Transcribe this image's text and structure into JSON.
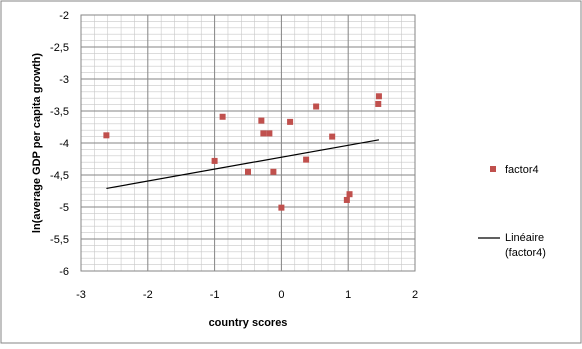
{
  "chart_data": {
    "type": "scatter",
    "title": "",
    "xlabel": "country scores",
    "ylabel": "ln(average GDP per capita growth)",
    "xlim": [
      -3,
      2
    ],
    "ylim": [
      -6,
      -2
    ],
    "xticks": [
      "-3",
      "-2",
      "-1",
      "0",
      "1",
      "2"
    ],
    "yticks": [
      "-2",
      "-2,5",
      "-3",
      "-3,5",
      "-4",
      "-4,5",
      "-5",
      "-5,5",
      "-6"
    ],
    "grid": true,
    "legend_position": "right",
    "series": [
      {
        "name": "factor4",
        "marker": "square",
        "color": "#c0504d",
        "points": [
          {
            "x": -2.62,
            "y": -3.88
          },
          {
            "x": -1.0,
            "y": -4.28
          },
          {
            "x": -0.88,
            "y": -3.59
          },
          {
            "x": -0.5,
            "y": -4.45
          },
          {
            "x": -0.3,
            "y": -3.65
          },
          {
            "x": -0.27,
            "y": -3.85
          },
          {
            "x": -0.18,
            "y": -3.85
          },
          {
            "x": -0.12,
            "y": -4.45
          },
          {
            "x": 0.0,
            "y": -5.01
          },
          {
            "x": 0.13,
            "y": -3.67
          },
          {
            "x": 0.37,
            "y": -4.26
          },
          {
            "x": 0.52,
            "y": -3.43
          },
          {
            "x": 0.76,
            "y": -3.9
          },
          {
            "x": 0.98,
            "y": -4.89
          },
          {
            "x": 1.02,
            "y": -4.8
          },
          {
            "x": 1.45,
            "y": -3.39
          },
          {
            "x": 1.46,
            "y": -3.27
          }
        ]
      }
    ],
    "trendline": {
      "name": "Linéaire (factor4)",
      "legend_lines": [
        "Linéaire",
        "(factor4)"
      ],
      "color": "#000000",
      "x": [
        -2.62,
        1.46
      ],
      "y": [
        -4.71,
        -3.95
      ]
    }
  }
}
